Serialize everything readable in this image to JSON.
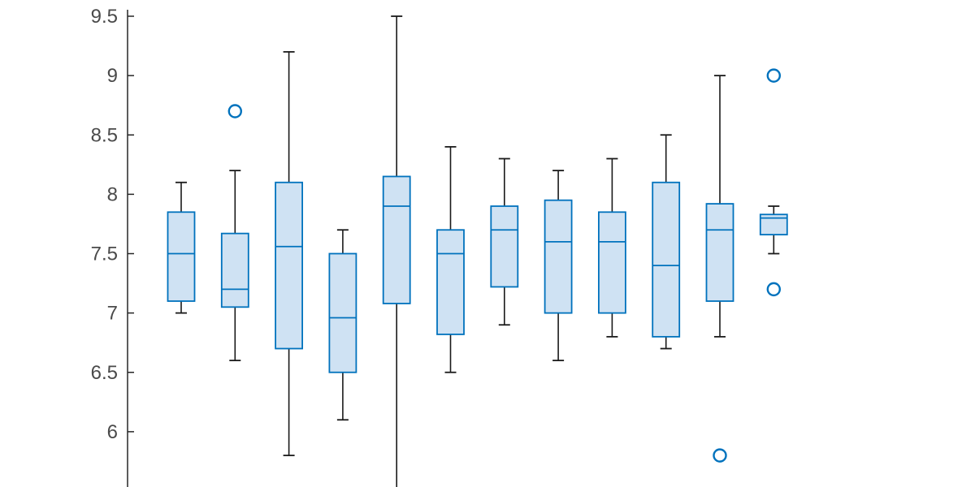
{
  "chart_data": {
    "type": "box",
    "title": "",
    "xlabel": "",
    "ylabel": "",
    "ylim": [
      5.5,
      9.5
    ],
    "yticks": [
      6,
      6.5,
      7,
      7.5,
      8,
      8.5,
      9,
      9.5
    ],
    "ytick_labels": [
      "6",
      "6.5",
      "7",
      "7.5",
      "8",
      "8.5",
      "9",
      "9.5"
    ],
    "grid": false,
    "series": [
      {
        "whisker_low": 7.0,
        "q1": 7.1,
        "median": 7.5,
        "q3": 7.85,
        "whisker_high": 8.1,
        "outliers": []
      },
      {
        "whisker_low": 6.6,
        "q1": 7.05,
        "median": 7.2,
        "q3": 7.67,
        "whisker_high": 8.2,
        "outliers": [
          8.7
        ]
      },
      {
        "whisker_low": 5.8,
        "q1": 6.7,
        "median": 7.56,
        "q3": 8.1,
        "whisker_high": 9.2,
        "outliers": []
      },
      {
        "whisker_low": 6.1,
        "q1": 6.5,
        "median": 6.96,
        "q3": 7.5,
        "whisker_high": 7.7,
        "outliers": []
      },
      {
        "whisker_low": 5.5,
        "q1": 7.08,
        "median": 7.9,
        "q3": 8.15,
        "whisker_high": 9.5,
        "outliers": []
      },
      {
        "whisker_low": 6.5,
        "q1": 6.82,
        "median": 7.5,
        "q3": 7.7,
        "whisker_high": 8.4,
        "outliers": []
      },
      {
        "whisker_low": 6.9,
        "q1": 7.22,
        "median": 7.7,
        "q3": 7.9,
        "whisker_high": 8.3,
        "outliers": []
      },
      {
        "whisker_low": 6.6,
        "q1": 7.0,
        "median": 7.6,
        "q3": 7.95,
        "whisker_high": 8.2,
        "outliers": []
      },
      {
        "whisker_low": 6.8,
        "q1": 7.0,
        "median": 7.6,
        "q3": 7.85,
        "whisker_high": 8.3,
        "outliers": []
      },
      {
        "whisker_low": 6.7,
        "q1": 6.8,
        "median": 7.4,
        "q3": 8.1,
        "whisker_high": 8.5,
        "outliers": []
      },
      {
        "whisker_low": 6.8,
        "q1": 7.1,
        "median": 7.7,
        "q3": 7.92,
        "whisker_high": 9.0,
        "outliers": [
          5.8
        ]
      },
      {
        "whisker_low": 7.5,
        "q1": 7.66,
        "median": 7.8,
        "q3": 7.83,
        "whisker_high": 7.9,
        "outliers": [
          9.0,
          7.2
        ]
      }
    ],
    "colors": {
      "box_edge": "#0072BD",
      "box_fill": "#cfe2f3",
      "median": "#0072BD",
      "whisker": "#1a1a1a",
      "outlier": "#0072BD",
      "axis": "#262626",
      "tick_text": "#4a4a4a"
    }
  }
}
